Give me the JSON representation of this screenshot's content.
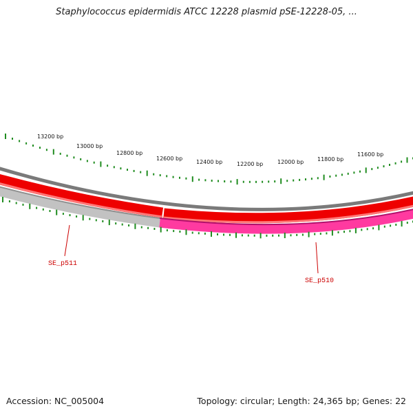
{
  "title": "Staphylococcus epidermidis ATCC 12228 plasmid pSE-12228-05, ...",
  "footer": {
    "accession": "Accession: NC_005004",
    "topology": "Topology: circular; Length: 24,365 bp; Genes: 22"
  },
  "plasmid": {
    "length_bp": 24365,
    "gene_count": 22,
    "visible_range_bp": [
      11500,
      13350
    ]
  },
  "scale_labels": [
    {
      "bp": 13200,
      "text": "13200 bp"
    },
    {
      "bp": 13000,
      "text": "13000 bp"
    },
    {
      "bp": 12800,
      "text": "12800 bp"
    },
    {
      "bp": 12600,
      "text": "12600 bp"
    },
    {
      "bp": 12400,
      "text": "12400 bp"
    },
    {
      "bp": 12200,
      "text": "12200 bp"
    },
    {
      "bp": 12000,
      "text": "12000 bp"
    },
    {
      "bp": 11800,
      "text": "11800 bp"
    },
    {
      "bp": 11600,
      "text": "11600 bp"
    }
  ],
  "genes": [
    {
      "name": "SE_p511",
      "label": "SE_p511",
      "color": "#c0c0c0"
    },
    {
      "name": "SE_p510",
      "label": "SE_p510",
      "color": "#ff3399"
    }
  ],
  "colors": {
    "backbone": "#808080",
    "forward_track": "#ff0000",
    "forward_track_light": "#ff6666",
    "tick": "#1f8c1f",
    "gene_label": "#cc0000"
  }
}
